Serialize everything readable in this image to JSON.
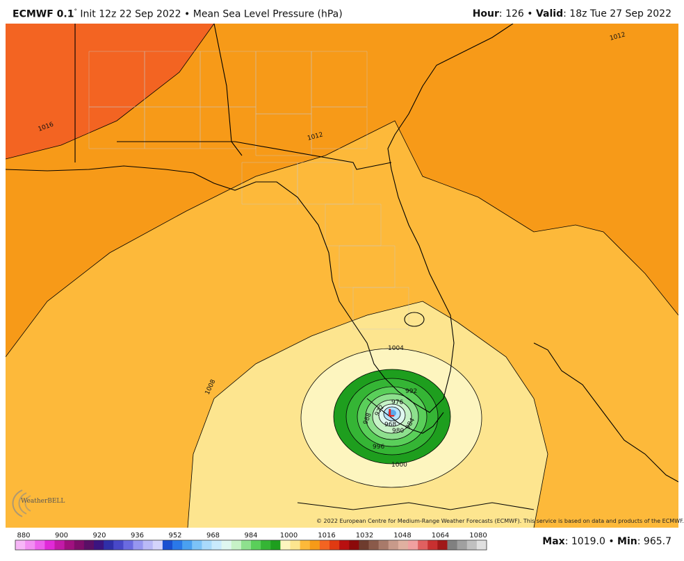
{
  "header": {
    "model": "ECMWF 0.1",
    "degree": "°",
    "init": "Init 12z 22 Sep 2022",
    "bullet": "•",
    "field": "Mean Sea Level Pressure (hPa)",
    "hour_label": "Hour",
    "hour_value": ": 126",
    "valid_label": "Valid",
    "valid_value": ": 18z Tue 27 Sep 2022"
  },
  "map": {
    "low_marker": "L",
    "isobar_labels": [
      "1016",
      "1012",
      "1012",
      "1008",
      "1004",
      "1000",
      "996",
      "992",
      "988",
      "984",
      "980",
      "976",
      "972",
      "968"
    ],
    "colors": {
      "p1016_plus": "#f36422",
      "p1012": "#f79a18",
      "p1008": "#fdb93a",
      "p1004": "#fde58f",
      "p1000": "#fdf5bf",
      "p996": "#1e9e1e",
      "p992": "#35b535",
      "p988": "#5acf5a",
      "p984": "#8ee08e",
      "p980": "#c7f2c7",
      "p976": "#dff7f0",
      "p972": "#b4e2ff",
      "p968": "#5aa8ec",
      "low": "#e8231f",
      "coast": "#000000",
      "county": "#c8c8c8"
    }
  },
  "credit": "© 2022 European Centre for Medium-Range Weather Forecasts (ECMWF). This service is based on data and products of the ECMWF.",
  "logo": {
    "text": "WeatherBELL"
  },
  "colorbar": {
    "tick_labels": [
      "880",
      "900",
      "920",
      "936",
      "952",
      "968",
      "984",
      "1000",
      "1016",
      "1032",
      "1048",
      "1064",
      "1080"
    ],
    "colors": [
      "#f7b6f7",
      "#f28ef2",
      "#ec5fec",
      "#e02ad8",
      "#c21aa8",
      "#a0107f",
      "#7e0d6a",
      "#5a0f66",
      "#3b1480",
      "#2f2fa8",
      "#4848c8",
      "#6a6ae0",
      "#9696f0",
      "#b9b9f7",
      "#d4d4fb",
      "#1a4fd0",
      "#2a78e8",
      "#4aa0f0",
      "#7cc3f7",
      "#a9dafb",
      "#c9eafd",
      "#dff7f0",
      "#c7f2c7",
      "#8ee08e",
      "#5acf5a",
      "#35b535",
      "#1e9e1e",
      "#fdf5bf",
      "#fde58f",
      "#fdb93a",
      "#f79a18",
      "#f36422",
      "#e03a12",
      "#b81010",
      "#8c0a0a",
      "#6e3c2e",
      "#8a5a4a",
      "#a87a6a",
      "#c89a8a",
      "#e0b0a0",
      "#f0a0a0",
      "#e06060",
      "#c83030",
      "#a01818",
      "#808080",
      "#a0a0a0",
      "#c0c0c0",
      "#e0e0e0"
    ]
  },
  "stats": {
    "max_label": "Max",
    "max_value": ": 1019.0",
    "sep": "•",
    "min_label": "Min",
    "min_value": ": 965.7"
  }
}
